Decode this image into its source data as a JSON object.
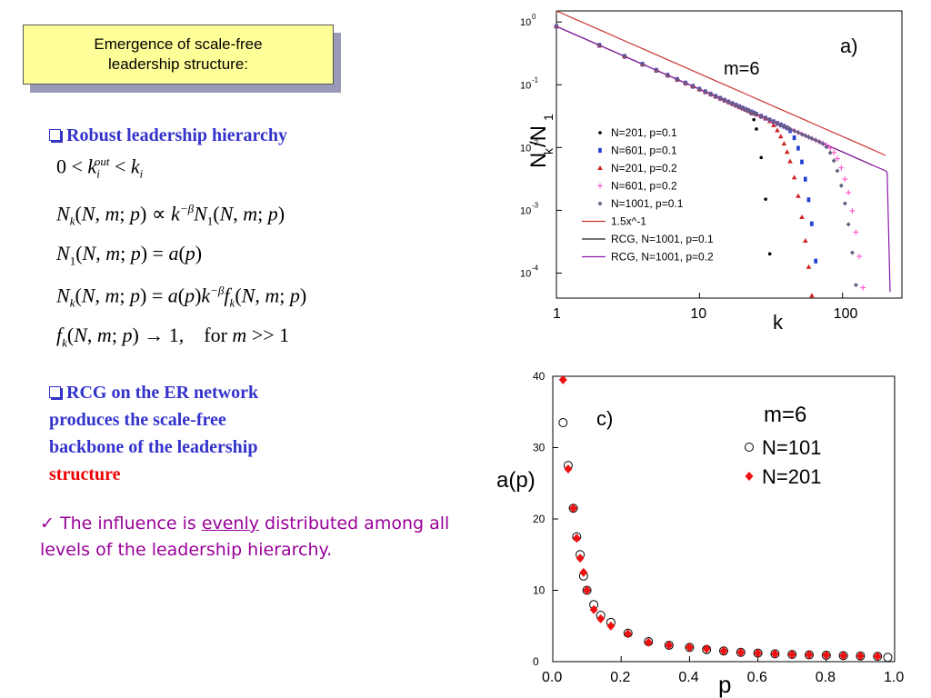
{
  "slide": {
    "title_line1": "Emergence of scale-free",
    "title_line2": "leadership structure:",
    "bullet1": "Robust leadership hierarchy",
    "bullet2_lines": [
      "RCG on the ER network",
      "produces the scale-free",
      "backbone of the leadership"
    ],
    "bullet2_red": "structure",
    "check_pre": "The influence is ",
    "check_underlined": "evenly",
    "check_post": " distributed among all levels of the leadership hierarchy."
  },
  "chart_data": [
    {
      "type": "scatter",
      "panel_label": "a)",
      "annotation": "m=6",
      "ylabel": "Nk/N1",
      "xlabel": "k",
      "xscale": "log",
      "yscale": "log",
      "xlim": [
        1,
        260
      ],
      "ylim": [
        4e-05,
        1.5
      ],
      "x_ticks": [
        "1",
        "10",
        "100"
      ],
      "y_ticks": [
        "10^0",
        "10^-1",
        "10^-2",
        "10^-3",
        "10^-4"
      ],
      "legend_position": "lower-left",
      "series": [
        {
          "name": "N=201,  p=0.1",
          "marker": "dot",
          "color": "#000000",
          "cutoff": 22,
          "end": 35
        },
        {
          "name": "N=601,  p=0.1",
          "marker": "square",
          "color": "#1f3fd0",
          "cutoff": 40,
          "end": 78
        },
        {
          "name": "N=201,  p=0.2",
          "marker": "triangle",
          "color": "#d02020",
          "cutoff": 28,
          "end": 72
        },
        {
          "name": "N=601,  p=0.2",
          "marker": "plus",
          "color": "#ff55cc",
          "cutoff": 75,
          "end": 170
        },
        {
          "name": "N=1001,  p=0.1",
          "marker": "diamond",
          "color": "#606080",
          "cutoff": 70,
          "end": 150
        },
        {
          "name": "1.5x^-1",
          "marker": "line",
          "color": "#cc3333"
        },
        {
          "name": "RCG, N=1001, p=0.1",
          "marker": "line",
          "color": "#222222"
        },
        {
          "name": "RCG, N=1001, p=0.2",
          "marker": "line",
          "color": "#8a1aa8"
        }
      ]
    },
    {
      "type": "scatter",
      "panel_label": "c)",
      "annotation": "m=6",
      "ylabel": "a(p)",
      "xlabel": "p",
      "xlim": [
        0,
        1.0
      ],
      "ylim": [
        0,
        40
      ],
      "x_ticks": [
        "0.0",
        "0.2",
        "0.4",
        "0.6",
        "0.8",
        "1.0"
      ],
      "y_ticks": [
        "0",
        "10",
        "20",
        "30",
        "40"
      ],
      "legend_position": "top-right",
      "series": [
        {
          "name": "N=101",
          "marker": "open-circle",
          "color": "#000000",
          "x": [
            0.03,
            0.045,
            0.06,
            0.07,
            0.08,
            0.09,
            0.1,
            0.12,
            0.14,
            0.17,
            0.22,
            0.28,
            0.34,
            0.4,
            0.45,
            0.5,
            0.55,
            0.6,
            0.65,
            0.7,
            0.75,
            0.8,
            0.85,
            0.9,
            0.95,
            0.98
          ],
          "y": [
            33.5,
            27.5,
            21.5,
            17.5,
            15,
            12,
            10,
            8,
            6.5,
            5.5,
            4,
            2.8,
            2.3,
            2,
            1.7,
            1.5,
            1.3,
            1.2,
            1.1,
            1.0,
            0.95,
            0.9,
            0.85,
            0.8,
            0.75,
            0.6
          ]
        },
        {
          "name": "N=201",
          "marker": "filled-diamond",
          "color": "#ee1111",
          "x": [
            0.03,
            0.045,
            0.06,
            0.07,
            0.08,
            0.09,
            0.1,
            0.12,
            0.14,
            0.17,
            0.22,
            0.28,
            0.34,
            0.4,
            0.45,
            0.5,
            0.55,
            0.6,
            0.65,
            0.7,
            0.75,
            0.8,
            0.85,
            0.9,
            0.95
          ],
          "y": [
            39.5,
            27,
            21.5,
            17.3,
            14.5,
            12.5,
            10,
            7.3,
            6,
            5,
            3.9,
            2.7,
            2.3,
            2,
            1.8,
            1.5,
            1.3,
            1.2,
            1.1,
            1.0,
            0.95,
            0.9,
            0.85,
            0.8,
            0.75
          ]
        }
      ]
    }
  ]
}
